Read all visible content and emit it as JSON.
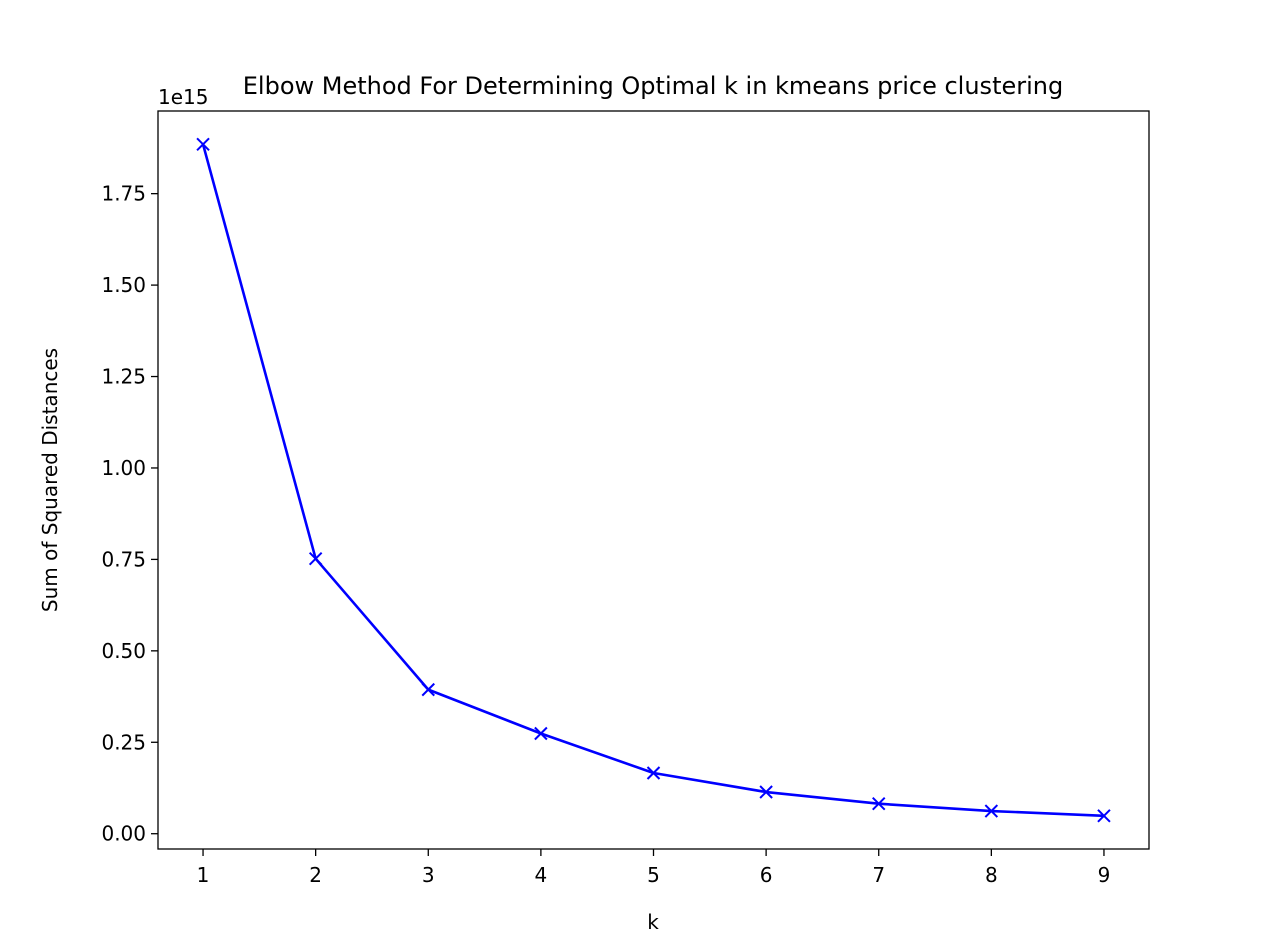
{
  "chart_data": {
    "type": "line",
    "title": "Elbow Method For Determining Optimal k in kmeans price clustering",
    "xlabel": "k",
    "ylabel": "Sum of Squared Distances",
    "offset_text": "1e15",
    "x": [
      1,
      2,
      3,
      4,
      5,
      6,
      7,
      8,
      9
    ],
    "series": [
      {
        "values": [
          1.885,
          0.752,
          0.394,
          0.274,
          0.166,
          0.114,
          0.082,
          0.062,
          0.049
        ],
        "color": "#0000ff",
        "marker": "x"
      }
    ],
    "xticks": [
      1,
      2,
      3,
      4,
      5,
      6,
      7,
      8,
      9
    ],
    "yticks": [
      "0.00",
      "0.25",
      "0.50",
      "0.75",
      "1.00",
      "1.25",
      "1.50",
      "1.75"
    ],
    "xlim": [
      0.6,
      9.4
    ],
    "ylim": [
      -0.0418,
      1.976
    ],
    "grid": false
  }
}
